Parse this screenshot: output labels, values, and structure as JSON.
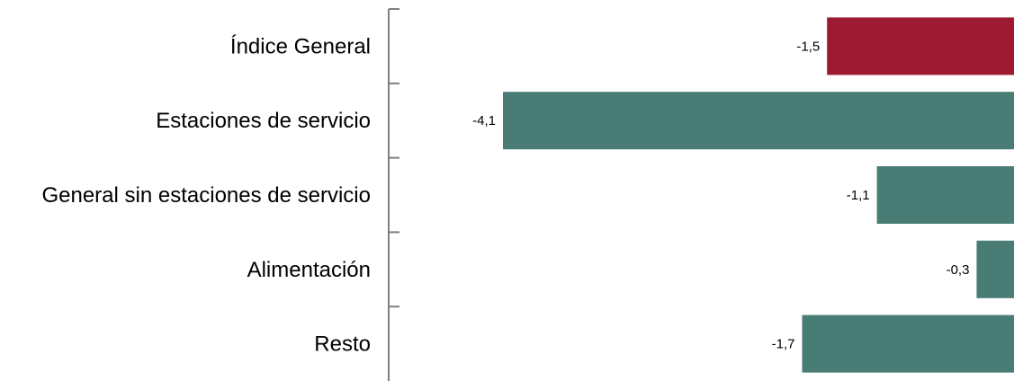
{
  "chart_data": {
    "type": "bar",
    "orientation": "horizontal",
    "categories": [
      "Índice General",
      "Estaciones de servicio",
      "General sin estaciones de servicio",
      "Alimentación",
      "Resto"
    ],
    "values": [
      -1.5,
      -4.1,
      -1.1,
      -0.3,
      -1.7
    ],
    "value_labels": [
      "-1,5",
      "-4,1",
      "-1,1",
      "-0,3",
      "-1,7"
    ],
    "bar_colors": [
      "#9e1a33",
      "#487c74",
      "#487c74",
      "#487c74",
      "#487c74"
    ],
    "xlim": [
      -4.1,
      0
    ],
    "grid": false,
    "legend": "none"
  }
}
